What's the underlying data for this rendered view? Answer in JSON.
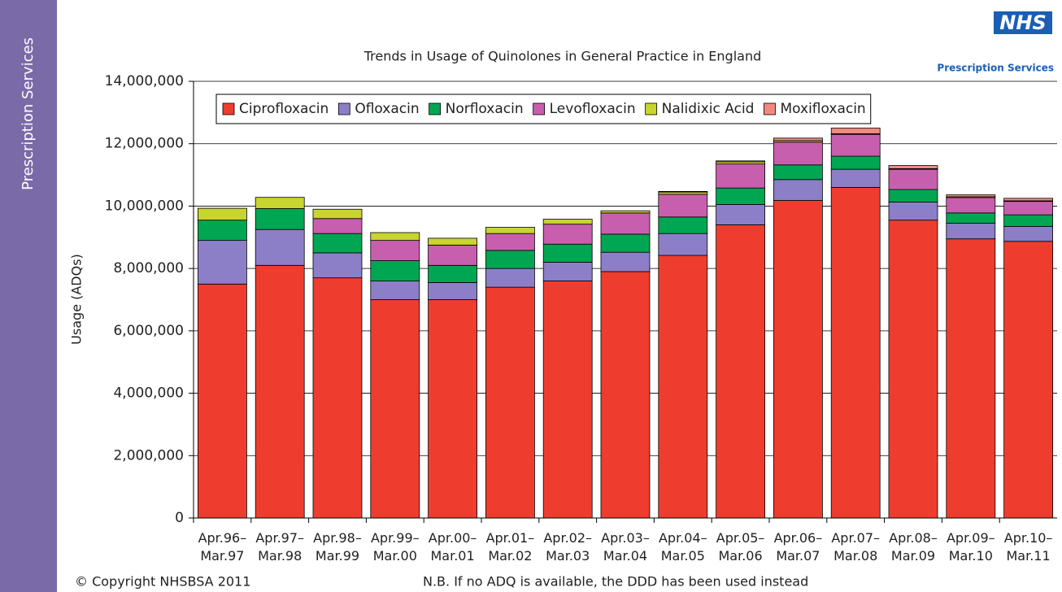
{
  "sidebar": "Prescription Services",
  "logo": {
    "mark": "NHS",
    "text": "Prescription Services"
  },
  "footer": {
    "copyright": "© Copyright NHSBSA 2011",
    "note": "N.B. If no ADQ is available, the DDD has been used instead"
  },
  "chart_data": {
    "type": "stacked_bar",
    "title": "Trends in Usage of Quinolones in General Practice in England",
    "ylabel": "Usage (ADQs)",
    "categories": [
      [
        "Apr.96–",
        "Mar.97"
      ],
      [
        "Apr.97–",
        "Mar.98"
      ],
      [
        "Apr.98–",
        "Mar.99"
      ],
      [
        "Apr.99–",
        "Mar.00"
      ],
      [
        "Apr.00–",
        "Mar.01"
      ],
      [
        "Apr.01–",
        "Mar.02"
      ],
      [
        "Apr.02–",
        "Mar.03"
      ],
      [
        "Apr.03–",
        "Mar.04"
      ],
      [
        "Apr.04–",
        "Mar.05"
      ],
      [
        "Apr.05–",
        "Mar.06"
      ],
      [
        "Apr.06–",
        "Mar.07"
      ],
      [
        "Apr.07–",
        "Mar.08"
      ],
      [
        "Apr.08–",
        "Mar.09"
      ],
      [
        "Apr.09–",
        "Mar.10"
      ],
      [
        "Apr.10–",
        "Mar.11"
      ]
    ],
    "series": [
      {
        "name": "Ciprofloxacin",
        "color": "#ee3d2f",
        "values": [
          7500000,
          8100000,
          7700000,
          7000000,
          7000000,
          7400000,
          7600000,
          7900000,
          8420000,
          9400000,
          10180000,
          10600000,
          9550000,
          8950000,
          8870000
        ]
      },
      {
        "name": "Ofloxacin",
        "color": "#8c7fc8",
        "values": [
          1400000,
          1150000,
          800000,
          600000,
          550000,
          600000,
          600000,
          620000,
          700000,
          650000,
          670000,
          580000,
          580000,
          500000,
          480000
        ]
      },
      {
        "name": "Norfloxacin",
        "color": "#00a651",
        "values": [
          650000,
          670000,
          620000,
          650000,
          550000,
          580000,
          580000,
          580000,
          530000,
          530000,
          470000,
          420000,
          400000,
          330000,
          370000
        ]
      },
      {
        "name": "Levofloxacin",
        "color": "#c85fae",
        "values": [
          0,
          0,
          480000,
          650000,
          650000,
          540000,
          640000,
          680000,
          730000,
          770000,
          730000,
          700000,
          650000,
          490000,
          430000
        ]
      },
      {
        "name": "Nalidixic Acid",
        "color": "#c8d430",
        "values": [
          380000,
          360000,
          300000,
          250000,
          220000,
          200000,
          160000,
          70000,
          70000,
          70000,
          50000,
          20000,
          20000,
          30000,
          20000
        ]
      },
      {
        "name": "Moxifloxacin",
        "color": "#f08a80",
        "values": [
          0,
          0,
          0,
          0,
          0,
          0,
          0,
          0,
          20000,
          30000,
          80000,
          180000,
          100000,
          60000,
          80000
        ]
      }
    ],
    "ylim": [
      0,
      14000000
    ],
    "yticks": [
      0,
      {
        "value": 2000000,
        "label": "2,000,000"
      },
      {
        "value": 4000000,
        "label": "4,000,000"
      },
      {
        "value": 6000000,
        "label": "6,000,000"
      },
      {
        "value": 8000000,
        "label": "8,000,000"
      },
      {
        "value": 10000000,
        "label": "10,000,000"
      },
      {
        "value": 12000000,
        "label": "12,000,000"
      },
      {
        "value": 14000000,
        "label": "14,000,000"
      }
    ],
    "grid": true
  }
}
